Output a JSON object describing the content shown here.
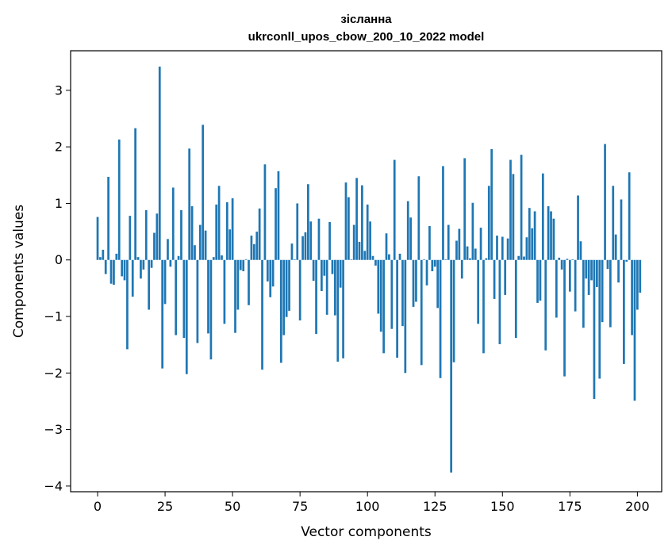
{
  "chart_data": {
    "type": "bar",
    "title_line1": "зісланна",
    "title_line2": "ukrconll_upos_cbow_200_10_2022 model",
    "xlabel": "Vector components",
    "ylabel": "Components values",
    "xlim": [
      -10,
      209
    ],
    "ylim": [
      -4.1,
      3.7
    ],
    "x_ticks": [
      0,
      25,
      50,
      75,
      100,
      125,
      150,
      175,
      200
    ],
    "x_tick_labels": [
      "0",
      "25",
      "50",
      "75",
      "100",
      "125",
      "150",
      "175",
      "200"
    ],
    "y_ticks": [
      -4,
      -3,
      -2,
      -1,
      0,
      1,
      2,
      3
    ],
    "y_tick_labels": [
      "−4",
      "−3",
      "−2",
      "−1",
      "0",
      "1",
      "2",
      "3"
    ],
    "grid": false,
    "bar_color": "#1f77b4",
    "values": [
      0.76,
      0.05,
      0.18,
      -0.25,
      1.47,
      -0.42,
      -0.44,
      0.11,
      2.13,
      -0.29,
      -0.36,
      -1.58,
      0.78,
      -0.65,
      2.33,
      0.05,
      -0.33,
      -0.17,
      0.88,
      -0.88,
      -0.14,
      0.48,
      0.82,
      3.42,
      -1.92,
      -0.78,
      0.37,
      -0.12,
      1.28,
      -1.33,
      0.07,
      0.88,
      -1.38,
      -2.02,
      1.97,
      0.95,
      0.26,
      -1.47,
      0.62,
      2.39,
      0.52,
      -1.3,
      -1.76,
      0.05,
      0.98,
      1.31,
      0.08,
      -1.13,
      1.02,
      0.54,
      1.09,
      -1.29,
      -0.88,
      -0.18,
      -0.2,
      0.01,
      -0.8,
      0.43,
      0.28,
      0.5,
      0.91,
      -1.94,
      1.69,
      -0.38,
      -0.66,
      -0.47,
      1.27,
      1.57,
      -1.82,
      -1.33,
      -1.01,
      -0.9,
      0.29,
      0.01,
      1.0,
      -1.07,
      0.42,
      0.49,
      1.34,
      0.68,
      -0.37,
      -1.31,
      0.73,
      -0.55,
      -0.28,
      -0.97,
      0.67,
      -0.25,
      -0.98,
      -1.8,
      -0.49,
      -1.74,
      1.37,
      1.11,
      0.01,
      0.62,
      1.45,
      0.32,
      1.32,
      0.16,
      0.98,
      0.68,
      0.07,
      -0.1,
      -0.95,
      -1.27,
      -1.65,
      0.47,
      0.1,
      -1.22,
      1.77,
      -1.73,
      0.11,
      -1.17,
      -2.0,
      1.04,
      0.75,
      -0.83,
      -0.74,
      1.48,
      -1.86,
      0.01,
      -0.45,
      0.6,
      -0.2,
      -0.12,
      -0.85,
      -2.09,
      1.66,
      0.01,
      0.62,
      -3.76,
      -1.81,
      0.34,
      0.55,
      -0.33,
      1.8,
      0.24,
      0.03,
      1.01,
      0.2,
      -1.13,
      0.57,
      -1.65,
      0.03,
      1.31,
      1.96,
      -0.69,
      0.43,
      -1.49,
      0.41,
      -0.62,
      0.38,
      1.77,
      1.52,
      -1.38,
      0.07,
      1.86,
      0.06,
      0.4,
      0.92,
      0.56,
      0.86,
      -0.76,
      -0.72,
      1.53,
      -1.6,
      0.95,
      0.86,
      0.73,
      -1.02,
      0.04,
      -0.17,
      -2.06,
      0.02,
      -0.56,
      0.01,
      -0.91,
      1.14,
      0.33,
      -1.2,
      -0.33,
      -0.62,
      -0.36,
      -2.46,
      -0.48,
      -2.1,
      -1.1,
      2.05,
      -0.16,
      -1.19,
      1.31,
      0.45,
      -0.4,
      1.07,
      -1.84,
      -0.03,
      1.55,
      -1.33,
      -2.49,
      -0.88,
      -0.58
    ]
  }
}
